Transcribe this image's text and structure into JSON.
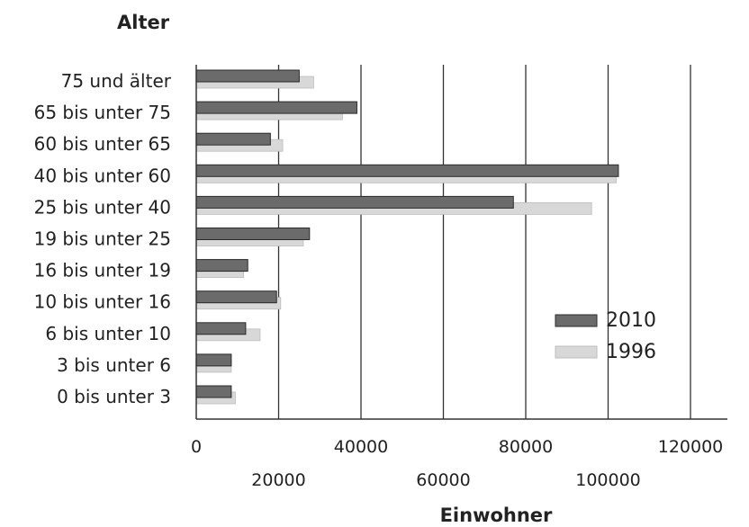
{
  "chart_data": {
    "type": "bar",
    "orientation": "horizontal",
    "ylabel": "Alter",
    "xlabel": "Einwohner",
    "categories": [
      "75 und älter",
      "65 bis unter 75",
      "60 bis unter 65",
      "40 bis unter 60",
      "25 bis unter 40",
      "19 bis unter 25",
      "16 bis unter 19",
      "10 bis unter 16",
      "6 bis unter 10",
      "3 bis unter 6",
      "0 bis unter 3"
    ],
    "series": [
      {
        "name": "2010",
        "color": "#6b6b6b",
        "values": [
          25000,
          39000,
          18000,
          102500,
          77000,
          27500,
          12500,
          19500,
          12000,
          8500,
          8500
        ]
      },
      {
        "name": "1996",
        "color": "#d8d8d8",
        "values": [
          28500,
          35500,
          21000,
          102000,
          96000,
          26000,
          11500,
          20500,
          15500,
          8500,
          9500
        ]
      }
    ],
    "xlim": [
      0,
      130000
    ],
    "xticks": [
      0,
      20000,
      40000,
      60000,
      80000,
      100000,
      120000
    ],
    "xtick_labels": [
      "0",
      "20000",
      "40000",
      "60000",
      "80000",
      "100000",
      "120000"
    ],
    "grid": "vertical",
    "legend": "right"
  }
}
